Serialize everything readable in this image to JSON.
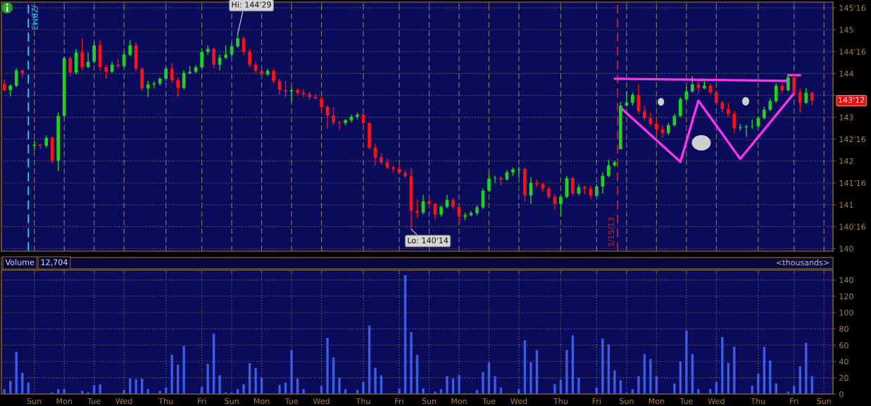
{
  "chart_data": [
    {
      "type": "candlestick",
      "categories": [
        null,
        null,
        null,
        null,
        null,
        null,
        null,
        null,
        null,
        null,
        null,
        null,
        null,
        null,
        null,
        null,
        null,
        null,
        null,
        null,
        null,
        null,
        null,
        null,
        null,
        null,
        null,
        null,
        null,
        null,
        null,
        null,
        null,
        null,
        null,
        null,
        null,
        null,
        null,
        null,
        null,
        null,
        null,
        null,
        null,
        null,
        null,
        null,
        null,
        null,
        null,
        null,
        null,
        null,
        null,
        null,
        null,
        null,
        null,
        null,
        null,
        null,
        null,
        null,
        null,
        null,
        null,
        null,
        null,
        null,
        null,
        null,
        null,
        null,
        null,
        null,
        null,
        null,
        null,
        null,
        null,
        null,
        null,
        null,
        null,
        null,
        null,
        null,
        null,
        null,
        null,
        null,
        null,
        null,
        null,
        null,
        null,
        null,
        null,
        null,
        null,
        null,
        null,
        null,
        null,
        null,
        null,
        null,
        null,
        null,
        null,
        null,
        null,
        null,
        null,
        null,
        null,
        null,
        null,
        null,
        null,
        null,
        null,
        null,
        null,
        null,
        null,
        null,
        null,
        null,
        null,
        null,
        null,
        null,
        null,
        null,
        null,
        null,
        null
      ],
      "ohlc": [
        [
          143.75,
          143.85,
          143.59,
          143.62
        ],
        [
          143.62,
          143.75,
          143.48,
          143.72
        ],
        [
          143.72,
          144.12,
          143.69,
          144.07
        ],
        [
          144.07,
          144.09,
          143.91,
          144.01
        ],
        null,
        [
          142.35,
          142.47,
          142.24,
          142.37
        ],
        [
          142.37,
          142.4,
          142.27,
          142.35
        ],
        [
          142.35,
          142.59,
          142.3,
          142.53
        ],
        [
          142.53,
          142.56,
          141.95,
          142.01
        ],
        [
          142.01,
          143.11,
          141.77,
          143.03
        ],
        [
          143.03,
          144.39,
          143.0,
          144.35
        ],
        [
          144.35,
          144.39,
          143.94,
          144.02
        ],
        [
          144.02,
          144.56,
          143.98,
          144.48
        ],
        [
          144.48,
          144.8,
          144.07,
          144.15
        ],
        [
          144.15,
          144.48,
          144.12,
          144.27
        ],
        [
          144.27,
          144.72,
          144.23,
          144.64
        ],
        [
          144.64,
          144.76,
          144.07,
          144.15
        ],
        [
          144.15,
          144.2,
          143.88,
          144.04
        ],
        [
          144.04,
          144.27,
          144.01,
          144.2
        ],
        [
          144.2,
          144.33,
          144.12,
          144.17
        ],
        [
          144.17,
          144.49,
          144.14,
          144.43
        ],
        [
          144.43,
          144.76,
          144.39,
          144.64
        ],
        [
          144.64,
          144.72,
          144.04,
          144.11
        ],
        [
          144.11,
          144.15,
          143.59,
          143.66
        ],
        [
          143.66,
          143.83,
          143.46,
          143.75
        ],
        [
          143.75,
          143.82,
          143.66,
          143.77
        ],
        [
          143.77,
          143.91,
          143.72,
          143.88
        ],
        [
          143.88,
          144.15,
          143.83,
          144.11
        ],
        [
          144.11,
          144.23,
          143.78,
          143.85
        ],
        [
          143.85,
          143.91,
          143.46,
          143.67
        ],
        [
          143.67,
          144.07,
          143.64,
          144.01
        ],
        [
          144.01,
          144.17,
          143.98,
          144.04
        ],
        [
          144.04,
          144.19,
          144.01,
          144.14
        ],
        [
          144.14,
          144.56,
          144.11,
          144.49
        ],
        [
          144.49,
          144.64,
          144.43,
          144.56
        ],
        [
          144.56,
          144.59,
          144.11,
          144.2
        ],
        [
          144.2,
          144.43,
          144.07,
          144.36
        ],
        [
          144.36,
          144.64,
          144.33,
          144.43
        ],
        [
          144.43,
          144.68,
          144.39,
          144.62
        ],
        [
          144.62,
          144.91,
          144.59,
          144.8
        ],
        [
          144.8,
          144.85,
          144.43,
          144.49
        ],
        [
          144.49,
          144.56,
          144.15,
          144.2
        ],
        [
          144.2,
          144.27,
          144.01,
          144.06
        ],
        [
          144.06,
          144.11,
          143.91,
          143.98
        ],
        [
          143.98,
          144.11,
          143.94,
          144.06
        ],
        [
          144.06,
          144.11,
          143.78,
          143.83
        ],
        [
          143.83,
          143.88,
          143.51,
          143.62
        ],
        [
          143.62,
          143.83,
          143.46,
          143.59
        ],
        [
          143.59,
          143.69,
          143.35,
          143.62
        ],
        [
          143.62,
          143.67,
          143.51,
          143.56
        ],
        [
          143.56,
          143.64,
          143.46,
          143.53
        ],
        [
          143.53,
          143.59,
          143.4,
          143.46
        ],
        [
          143.46,
          143.53,
          143.41,
          143.43
        ],
        [
          143.43,
          143.46,
          143.11,
          143.24
        ],
        [
          143.24,
          143.27,
          142.74,
          143.04
        ],
        [
          143.04,
          143.22,
          142.82,
          142.88
        ],
        [
          142.88,
          142.92,
          142.71,
          142.87
        ],
        [
          142.87,
          142.96,
          142.82,
          142.93
        ],
        [
          142.93,
          143.06,
          142.88,
          143.01
        ],
        [
          143.01,
          143.11,
          142.95,
          143.06
        ],
        [
          143.06,
          143.08,
          142.83,
          142.87
        ],
        [
          142.87,
          142.88,
          142.27,
          142.3
        ],
        [
          142.3,
          142.39,
          141.9,
          142.08
        ],
        [
          142.08,
          142.18,
          141.92,
          141.97
        ],
        [
          141.97,
          142.05,
          141.82,
          141.85
        ],
        [
          141.85,
          141.89,
          141.73,
          141.82
        ],
        [
          141.82,
          141.9,
          141.69,
          141.73
        ],
        [
          141.73,
          141.79,
          141.61,
          141.66
        ],
        [
          141.66,
          141.85,
          140.44,
          140.86
        ],
        [
          140.86,
          141.13,
          140.7,
          140.82
        ],
        [
          140.82,
          141.23,
          140.78,
          141.08
        ],
        [
          141.08,
          141.18,
          140.94,
          141.02
        ],
        [
          141.02,
          141.05,
          140.66,
          140.78
        ],
        [
          140.78,
          140.99,
          140.73,
          140.95
        ],
        [
          140.95,
          141.23,
          140.92,
          141.11
        ],
        [
          141.11,
          141.15,
          140.91,
          140.95
        ],
        [
          140.95,
          140.99,
          140.57,
          140.73
        ],
        [
          140.73,
          140.82,
          140.65,
          140.76
        ],
        [
          140.76,
          140.86,
          140.73,
          140.81
        ],
        [
          140.81,
          140.99,
          140.76,
          140.94
        ],
        [
          140.94,
          141.37,
          140.91,
          141.32
        ],
        [
          141.32,
          141.74,
          141.29,
          141.6
        ],
        [
          141.6,
          141.66,
          141.5,
          141.61
        ],
        [
          141.61,
          141.66,
          141.45,
          141.58
        ],
        [
          141.58,
          141.79,
          141.55,
          141.74
        ],
        [
          141.74,
          141.85,
          141.66,
          141.81
        ],
        [
          141.81,
          141.87,
          141.63,
          141.82
        ],
        [
          141.82,
          141.85,
          141.07,
          141.21
        ],
        [
          141.21,
          141.63,
          141.02,
          141.5
        ],
        [
          141.5,
          141.58,
          141.4,
          141.47
        ],
        [
          141.47,
          141.5,
          141.29,
          141.37
        ],
        [
          141.37,
          141.42,
          141.13,
          141.18
        ],
        [
          141.18,
          141.24,
          140.89,
          141.02
        ],
        [
          141.02,
          141.21,
          140.73,
          141.18
        ],
        [
          141.18,
          141.66,
          141.15,
          141.61
        ],
        [
          141.61,
          141.64,
          141.21,
          141.26
        ],
        [
          141.26,
          141.47,
          141.21,
          141.4
        ],
        [
          141.4,
          141.44,
          141.24,
          141.37
        ],
        [
          141.37,
          141.44,
          141.13,
          141.21
        ],
        [
          141.21,
          141.47,
          141.18,
          141.42
        ],
        [
          141.42,
          141.74,
          141.26,
          141.66
        ],
        [
          141.66,
          142.03,
          141.63,
          141.9
        ],
        [
          141.9,
          142.01,
          141.87,
          141.97
        ],
        [
          142.27,
          143.35,
          142.27,
          143.27
        ],
        [
          143.27,
          143.59,
          143.24,
          143.33
        ],
        [
          143.33,
          143.56,
          143.27,
          143.51
        ],
        [
          143.51,
          143.75,
          143.08,
          143.14
        ],
        [
          143.14,
          143.27,
          142.92,
          142.98
        ],
        [
          142.98,
          143.11,
          142.79,
          142.85
        ],
        [
          142.85,
          142.95,
          142.59,
          142.72
        ],
        [
          142.72,
          142.82,
          142.53,
          142.64
        ],
        [
          142.64,
          142.87,
          142.59,
          142.82
        ],
        [
          142.82,
          143.08,
          142.79,
          143.03
        ],
        [
          143.03,
          143.46,
          143.0,
          143.41
        ],
        [
          143.41,
          143.7,
          143.38,
          143.59
        ],
        [
          143.59,
          143.94,
          143.56,
          143.75
        ],
        [
          143.75,
          143.82,
          143.53,
          143.67
        ],
        [
          143.67,
          143.88,
          143.64,
          143.72
        ],
        [
          143.72,
          143.77,
          143.53,
          143.57
        ],
        [
          143.57,
          143.62,
          143.27,
          143.33
        ],
        [
          143.33,
          143.37,
          143.11,
          143.19
        ],
        [
          143.19,
          143.33,
          143.01,
          143.08
        ],
        [
          143.08,
          143.14,
          142.63,
          142.75
        ],
        [
          142.75,
          142.85,
          142.69,
          142.77
        ],
        [
          142.77,
          142.82,
          142.55,
          142.79
        ],
        [
          142.79,
          142.95,
          142.74,
          142.8
        ],
        [
          142.8,
          143.03,
          142.77,
          142.98
        ],
        [
          142.98,
          143.24,
          142.95,
          143.17
        ],
        [
          143.17,
          143.43,
          143.14,
          143.37
        ],
        [
          143.37,
          143.78,
          143.33,
          143.72
        ],
        [
          143.72,
          143.77,
          143.56,
          143.62
        ],
        [
          143.62,
          143.99,
          143.59,
          143.91
        ],
        [
          143.91,
          143.98,
          143.53,
          143.57
        ],
        [
          143.57,
          143.66,
          143.11,
          143.33
        ],
        [
          143.33,
          143.67,
          143.3,
          143.56
        ],
        [
          143.56,
          143.59,
          143.27,
          143.38
        ],
        null,
        null,
        null
      ],
      "colors": [
        "#ff1111",
        "#1fd41f",
        "#1fd41f",
        "#ff1111",
        null,
        "#1fd41f",
        "#ff1111",
        "#1fd41f",
        "#ff1111",
        "#1fd41f",
        "#1fd41f",
        "#ff1111",
        "#1fd41f",
        "#ff1111",
        "#1fd41f",
        "#1fd41f",
        "#ff1111",
        "#ff1111",
        "#1fd41f",
        "#ff1111",
        "#1fd41f",
        "#1fd41f",
        "#ff1111",
        "#ff1111",
        "#1fd41f",
        "#1fd41f",
        "#1fd41f",
        "#1fd41f",
        "#ff1111",
        "#ff1111",
        "#1fd41f",
        "#1fd41f",
        "#1fd41f",
        "#1fd41f",
        "#1fd41f",
        "#ff1111",
        "#1fd41f",
        "#1fd41f",
        "#1fd41f",
        "#1fd41f",
        "#ff1111",
        "#ff1111",
        "#ff1111",
        "#ff1111",
        "#1fd41f",
        "#ff1111",
        "#ff1111",
        "#ff1111",
        "#1fd41f",
        "#ff1111",
        "#ff1111",
        "#ff1111",
        "#ff1111",
        "#ff1111",
        "#ff1111",
        "#ff1111",
        "#ff1111",
        "#1fd41f",
        "#1fd41f",
        "#1fd41f",
        "#ff1111",
        "#ff1111",
        "#ff1111",
        "#ff1111",
        "#ff1111",
        "#ff1111",
        "#ff1111",
        "#ff1111",
        "#ff1111",
        "#ff1111",
        "#1fd41f",
        "#ff1111",
        "#ff1111",
        "#1fd41f",
        "#1fd41f",
        "#ff1111",
        "#ff1111",
        "#1fd41f",
        "#1fd41f",
        "#1fd41f",
        "#1fd41f",
        "#1fd41f",
        "#1fd41f",
        "#ff1111",
        "#1fd41f",
        "#1fd41f",
        "#1fd41f",
        "#ff1111",
        "#1fd41f",
        "#ff1111",
        "#ff1111",
        "#ff1111",
        "#ff1111",
        "#1fd41f",
        "#1fd41f",
        "#ff1111",
        "#1fd41f",
        "#ff1111",
        "#ff1111",
        "#1fd41f",
        "#1fd41f",
        "#1fd41f",
        "#1fd41f",
        "#1fd41f",
        "#1fd41f",
        "#1fd41f",
        "#ff1111",
        "#ff1111",
        "#ff1111",
        "#ff1111",
        "#ff1111",
        "#1fd41f",
        "#1fd41f",
        "#1fd41f",
        "#1fd41f",
        "#1fd41f",
        "#ff1111",
        "#1fd41f",
        "#ff1111",
        "#ff1111",
        "#ff1111",
        "#ff1111",
        "#ff1111",
        "#1fd41f",
        "#1fd41f",
        "#1fd41f",
        "#1fd41f",
        "#1fd41f",
        "#1fd41f",
        "#1fd41f",
        "#ff1111",
        "#1fd41f",
        "#ff1111",
        "#ff1111",
        "#1fd41f",
        "#ff1111",
        null,
        null,
        null
      ],
      "series": [
        {
          "type": "line",
          "color": "#ff33ee",
          "values": [
            null,
            null,
            null,
            null,
            null,
            null,
            null,
            null,
            null,
            null,
            null,
            null,
            null,
            null,
            null,
            null,
            null,
            null,
            null,
            null,
            null,
            null,
            null,
            null,
            null,
            null,
            null,
            null,
            null,
            null,
            null,
            null,
            null,
            null,
            null,
            null,
            null,
            null,
            null,
            null,
            null,
            null,
            null,
            null,
            null,
            null,
            null,
            null,
            null,
            null,
            null,
            null,
            null,
            null,
            null,
            null,
            null,
            null,
            null,
            null,
            null,
            null,
            null,
            null,
            null,
            null,
            null,
            null,
            null,
            null,
            null,
            null,
            null,
            null,
            null,
            null,
            null,
            null,
            null,
            null,
            null,
            null,
            null,
            null,
            null,
            null,
            null,
            null,
            null,
            null,
            null,
            null,
            null,
            null,
            null,
            null,
            null,
            null,
            null,
            null,
            null,
            null,
            143.88,
            null,
            null,
            null,
            null,
            null,
            null,
            null,
            null,
            null,
            null,
            null,
            null,
            null,
            null,
            null,
            null,
            null,
            null,
            null,
            null,
            null,
            null,
            null,
            null,
            null,
            null,
            null,
            null,
            143.83,
            null,
            null,
            null,
            null,
            null,
            null,
            null
          ]
        },
        {
          "type": "line",
          "color": "#ff33ee",
          "values": [
            null,
            null,
            null,
            null,
            null,
            null,
            null,
            null,
            null,
            null,
            null,
            null,
            null,
            null,
            null,
            null,
            null,
            null,
            null,
            null,
            null,
            null,
            null,
            null,
            null,
            null,
            null,
            null,
            null,
            null,
            null,
            null,
            null,
            null,
            null,
            null,
            null,
            null,
            null,
            null,
            null,
            null,
            null,
            null,
            null,
            null,
            null,
            null,
            null,
            null,
            null,
            null,
            null,
            null,
            null,
            null,
            null,
            null,
            null,
            null,
            null,
            null,
            null,
            null,
            null,
            null,
            null,
            null,
            null,
            null,
            null,
            null,
            null,
            null,
            null,
            null,
            null,
            null,
            null,
            null,
            null,
            null,
            null,
            null,
            null,
            null,
            null,
            null,
            null,
            null,
            null,
            null,
            null,
            null,
            null,
            null,
            null,
            null,
            null,
            null,
            null,
            null,
            null,
            null,
            null,
            null,
            null,
            null,
            null,
            null,
            null,
            null,
            null,
            null,
            null,
            null,
            null,
            null,
            null,
            null,
            null,
            null,
            null,
            null,
            null,
            null,
            null,
            null,
            null,
            null,
            null,
            143.96,
            null,
            143.96,
            null,
            null,
            null,
            null,
            null
          ]
        },
        {
          "type": "line",
          "color": "#ff33ee",
          "values": [
            null,
            null,
            null,
            null,
            null,
            null,
            null,
            null,
            null,
            null,
            null,
            null,
            null,
            null,
            null,
            null,
            null,
            null,
            null,
            null,
            null,
            null,
            null,
            null,
            null,
            null,
            null,
            null,
            null,
            null,
            null,
            null,
            null,
            null,
            null,
            null,
            null,
            null,
            null,
            null,
            null,
            null,
            null,
            null,
            null,
            null,
            null,
            null,
            null,
            null,
            null,
            null,
            null,
            null,
            null,
            null,
            null,
            null,
            null,
            null,
            null,
            null,
            null,
            null,
            null,
            null,
            null,
            null,
            null,
            null,
            null,
            null,
            null,
            null,
            null,
            null,
            null,
            null,
            null,
            null,
            null,
            null,
            null,
            null,
            null,
            null,
            null,
            null,
            null,
            null,
            null,
            null,
            null,
            null,
            null,
            null,
            null,
            null,
            null,
            null,
            null,
            null,
            null,
            143.22,
            null,
            null,
            null,
            null,
            null,
            null,
            null,
            null,
            null,
            141.98,
            null,
            null,
            143.38,
            null,
            null,
            null,
            null,
            null,
            null,
            142.05,
            null,
            null,
            null,
            null,
            null,
            null,
            null,
            null,
            143.55,
            null,
            null,
            null,
            null,
            null,
            null
          ]
        }
      ],
      "annotations": [
        "Hi: 144'29",
        "Lo: 140'14",
        "143'12",
        "/ZBM3",
        "3/15/13"
      ],
      "ylim": [
        139.94,
        145.63
      ],
      "yticks": [
        140,
        {
          "value": 140.5,
          "label": "140'16"
        },
        141,
        {
          "value": 141.5,
          "label": "141'16"
        },
        142,
        {
          "value": 142.5,
          "label": "142'16"
        },
        143,
        {
          "value": 143.5,
          "label": null
        },
        144,
        {
          "value": 144.5,
          "label": "144'16"
        },
        145,
        {
          "value": 145.5,
          "label": "145'16"
        }
      ],
      "grid": true,
      "tick_labels": "y"
    },
    {
      "type": "bar",
      "title": "Volume",
      "ylabel": "<thousands>",
      "annotations": [
        "12,704"
      ],
      "color": "#3d5ce6",
      "categories": [
        null,
        null,
        null,
        null,
        null,
        "Sun",
        null,
        null,
        null,
        null,
        "Mon",
        null,
        null,
        null,
        null,
        "Tue",
        null,
        null,
        null,
        null,
        "Wed",
        null,
        null,
        null,
        null,
        null,
        null,
        "Thu",
        null,
        null,
        null,
        null,
        null,
        "Fri",
        null,
        null,
        null,
        null,
        "Sun",
        null,
        null,
        null,
        null,
        "Mon",
        null,
        null,
        null,
        null,
        "Tue",
        null,
        null,
        null,
        null,
        "Wed",
        null,
        null,
        null,
        null,
        null,
        null,
        "Thu",
        null,
        null,
        null,
        null,
        null,
        "Fri",
        null,
        null,
        null,
        null,
        "Sun",
        null,
        null,
        null,
        null,
        "Mon",
        null,
        null,
        null,
        null,
        "Tue",
        null,
        null,
        null,
        null,
        "Wed",
        null,
        null,
        null,
        null,
        null,
        null,
        "Thu",
        null,
        null,
        null,
        null,
        null,
        "Fri",
        null,
        null,
        null,
        null,
        "Sun",
        null,
        null,
        null,
        null,
        "Mon",
        null,
        null,
        null,
        null,
        "Tue",
        null,
        null,
        null,
        null,
        "Wed",
        null,
        null,
        null,
        null,
        null,
        null,
        "Thu",
        null,
        null,
        null,
        null,
        null,
        "Fri",
        null,
        null,
        null,
        null,
        "Sun",
        null
      ],
      "values": [
        6,
        16,
        52,
        26,
        14,
        null,
        null,
        null,
        2,
        6,
        6,
        null,
        null,
        4,
        2,
        11,
        12,
        null,
        null,
        null,
        5,
        19,
        18,
        19,
        6,
        null,
        4,
        8,
        48,
        36,
        59,
        null,
        null,
        9,
        37,
        74,
        23,
        2,
        2,
        6,
        12,
        38,
        32,
        20,
        null,
        null,
        11,
        14,
        54,
        19,
        6,
        null,
        null,
        10,
        69,
        45,
        20,
        6,
        null,
        5,
        15,
        84,
        32,
        23,
        null,
        null,
        6,
        146,
        76,
        48,
        7,
        1,
        3,
        6,
        22,
        19,
        23,
        1,
        1,
        5,
        27,
        39,
        22,
        8,
        null,
        null,
        6,
        66,
        39,
        54,
        null,
        null,
        12,
        18,
        54,
        72,
        20,
        null,
        null,
        8,
        68,
        61,
        29,
        17,
        2,
        6,
        22,
        49,
        43,
        22,
        null,
        null,
        13,
        40,
        78,
        49,
        6,
        null,
        6,
        15,
        70,
        38,
        58,
        null,
        null,
        10,
        25,
        58,
        41,
        13,
        null,
        3,
        10,
        34,
        63,
        22,
        null,
        null,
        null
      ],
      "ylim": [
        0,
        152
      ],
      "yticks": [
        0,
        20,
        40,
        60,
        80,
        100,
        120,
        140
      ],
      "grid": true
    }
  ]
}
